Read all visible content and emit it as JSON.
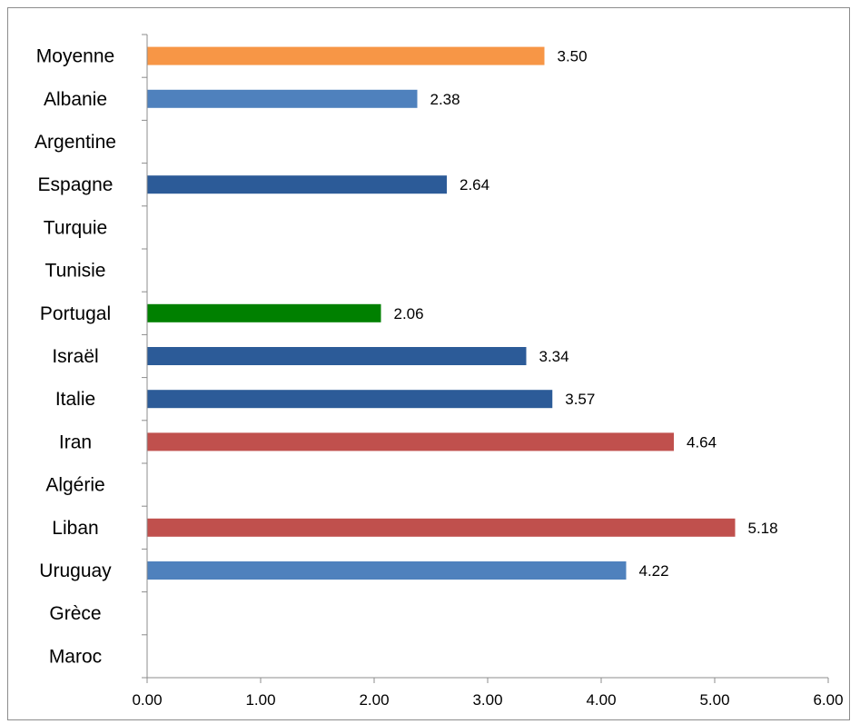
{
  "chart_data": {
    "type": "bar",
    "orientation": "horizontal",
    "categories": [
      "Moyenne",
      "Albanie",
      "Argentine",
      "Espagne",
      "Turquie",
      "Tunisie",
      "Portugal",
      "Israël",
      "Italie",
      "Iran",
      "Algérie",
      "Liban",
      "Uruguay",
      "Grèce",
      "Maroc"
    ],
    "values": [
      3.5,
      2.38,
      null,
      2.64,
      null,
      null,
      2.06,
      3.34,
      3.57,
      4.64,
      null,
      5.18,
      4.22,
      null,
      null
    ],
    "value_labels": [
      "3.50",
      "2.38",
      "",
      "2.64",
      "",
      "",
      "2.06",
      "3.34",
      "3.57",
      "4.64",
      "",
      "5.18",
      "4.22",
      "",
      ""
    ],
    "bar_colors": [
      "#f79646",
      "#4f81bd",
      "#4f81bd",
      "#2c5b98",
      "#2c5b98",
      "#2c5b98",
      "#008000",
      "#2c5b98",
      "#2c5b98",
      "#c0504d",
      "#c0504d",
      "#c0504d",
      "#4f81bd",
      "#4f81bd",
      "#4f81bd"
    ],
    "xlim": [
      0,
      6
    ],
    "x_ticks": [
      0,
      1,
      2,
      3,
      4,
      5,
      6
    ],
    "x_tick_labels": [
      "0.00",
      "1.00",
      "2.00",
      "3.00",
      "4.00",
      "5.00",
      "6.00"
    ],
    "grid": false,
    "legend": "none",
    "title": "",
    "xlabel": "",
    "ylabel": ""
  }
}
